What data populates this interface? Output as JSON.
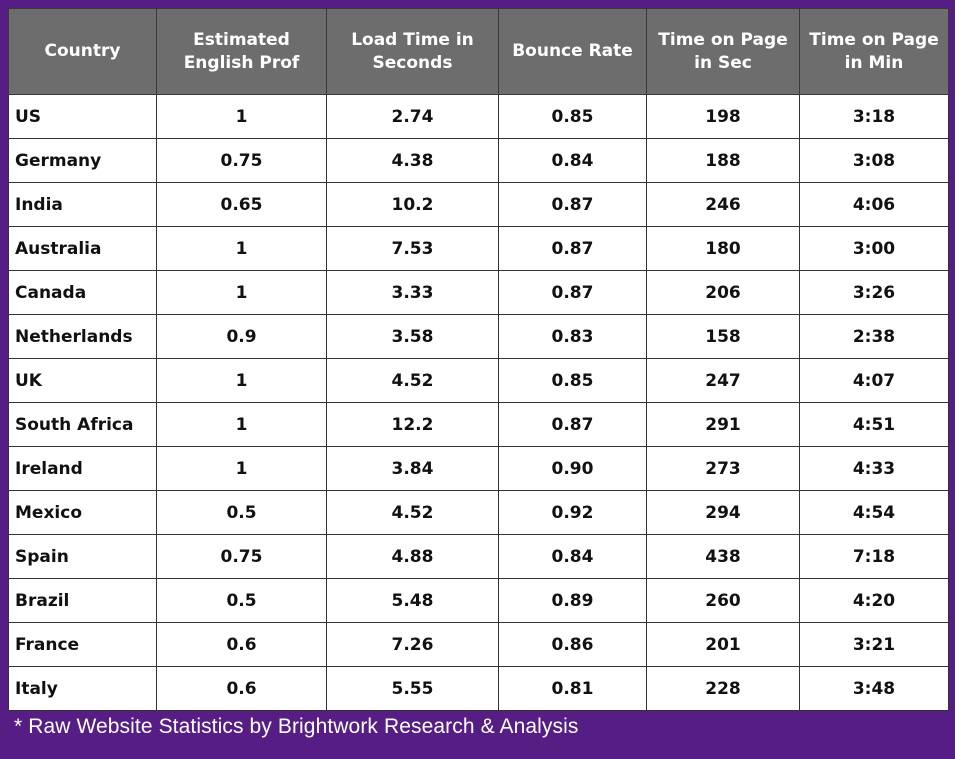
{
  "table": {
    "headers": [
      "Country",
      "Estimated English Prof",
      "Load Time in Seconds",
      "Bounce Rate",
      "Time on Page in Sec",
      "Time on Page in Min"
    ],
    "rows": [
      [
        "US",
        "1",
        "2.74",
        "0.85",
        "198",
        "3:18"
      ],
      [
        "Germany",
        "0.75",
        "4.38",
        "0.84",
        "188",
        "3:08"
      ],
      [
        "India",
        "0.65",
        "10.2",
        "0.87",
        "246",
        "4:06"
      ],
      [
        "Australia",
        "1",
        "7.53",
        "0.87",
        "180",
        "3:00"
      ],
      [
        "Canada",
        "1",
        "3.33",
        "0.87",
        "206",
        "3:26"
      ],
      [
        "Netherlands",
        "0.9",
        "3.58",
        "0.83",
        "158",
        "2:38"
      ],
      [
        "UK",
        "1",
        "4.52",
        "0.85",
        "247",
        "4:07"
      ],
      [
        "South Africa",
        "1",
        "12.2",
        "0.87",
        "291",
        "4:51"
      ],
      [
        "Ireland",
        "1",
        "3.84",
        "0.90",
        "273",
        "4:33"
      ],
      [
        "Mexico",
        "0.5",
        "4.52",
        "0.92",
        "294",
        "4:54"
      ],
      [
        "Spain",
        "0.75",
        "4.88",
        "0.84",
        "438",
        "7:18"
      ],
      [
        "Brazil",
        "0.5",
        "5.48",
        "0.89",
        "260",
        "4:20"
      ],
      [
        "France",
        "0.6",
        "7.26",
        "0.86",
        "201",
        "3:21"
      ],
      [
        "Italy",
        "0.6",
        "5.55",
        "0.81",
        "228",
        "3:48"
      ]
    ]
  },
  "footnote": "* Raw Website Statistics by Brightwork Research & Analysis",
  "colors": {
    "background": "#561e85",
    "header_bg": "#6d6d6d",
    "header_text": "#ffffff",
    "cell_bg": "#ffffff"
  }
}
